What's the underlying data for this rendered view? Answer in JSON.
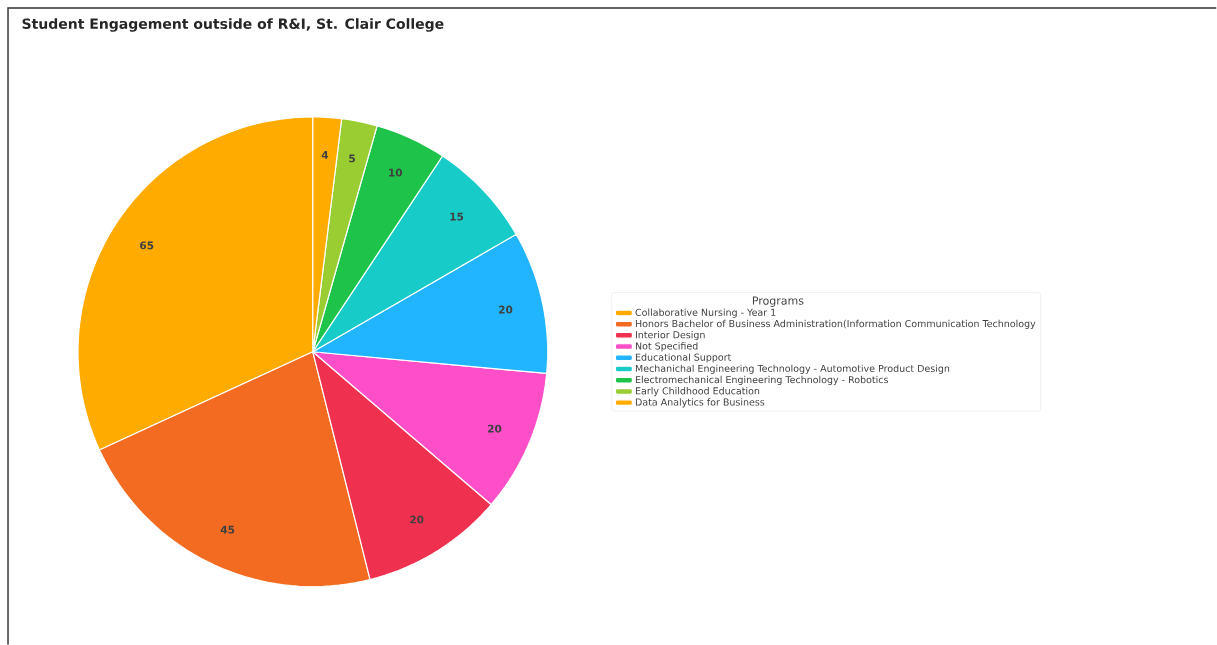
{
  "chart_data": {
    "type": "pie",
    "title": "Student Engagement outside of R&I, St. Clair College",
    "legend_title": "Programs",
    "legend": "right",
    "data_labels": true,
    "categories": [
      "Collaborative Nursing - Year 1",
      "Honors Bachelor of Business Administration(Information Communication Technology",
      "Interior Design",
      "Not Specified",
      "Educational Support",
      "Mechanichal Engineering Technology - Automotive Product Design",
      "Electromechanical Engineering Technology - Robotics",
      "Early Childhood Education",
      "Data Analytics for Business"
    ],
    "values": [
      65,
      45,
      20,
      20,
      20,
      15,
      10,
      5,
      4
    ],
    "colors": [
      "#ffab00",
      "#f26b21",
      "#f0304f",
      "#ff4fc8",
      "#22b5ff",
      "#17cbc9",
      "#1ec44a",
      "#9acd32",
      "#ffab00"
    ]
  }
}
